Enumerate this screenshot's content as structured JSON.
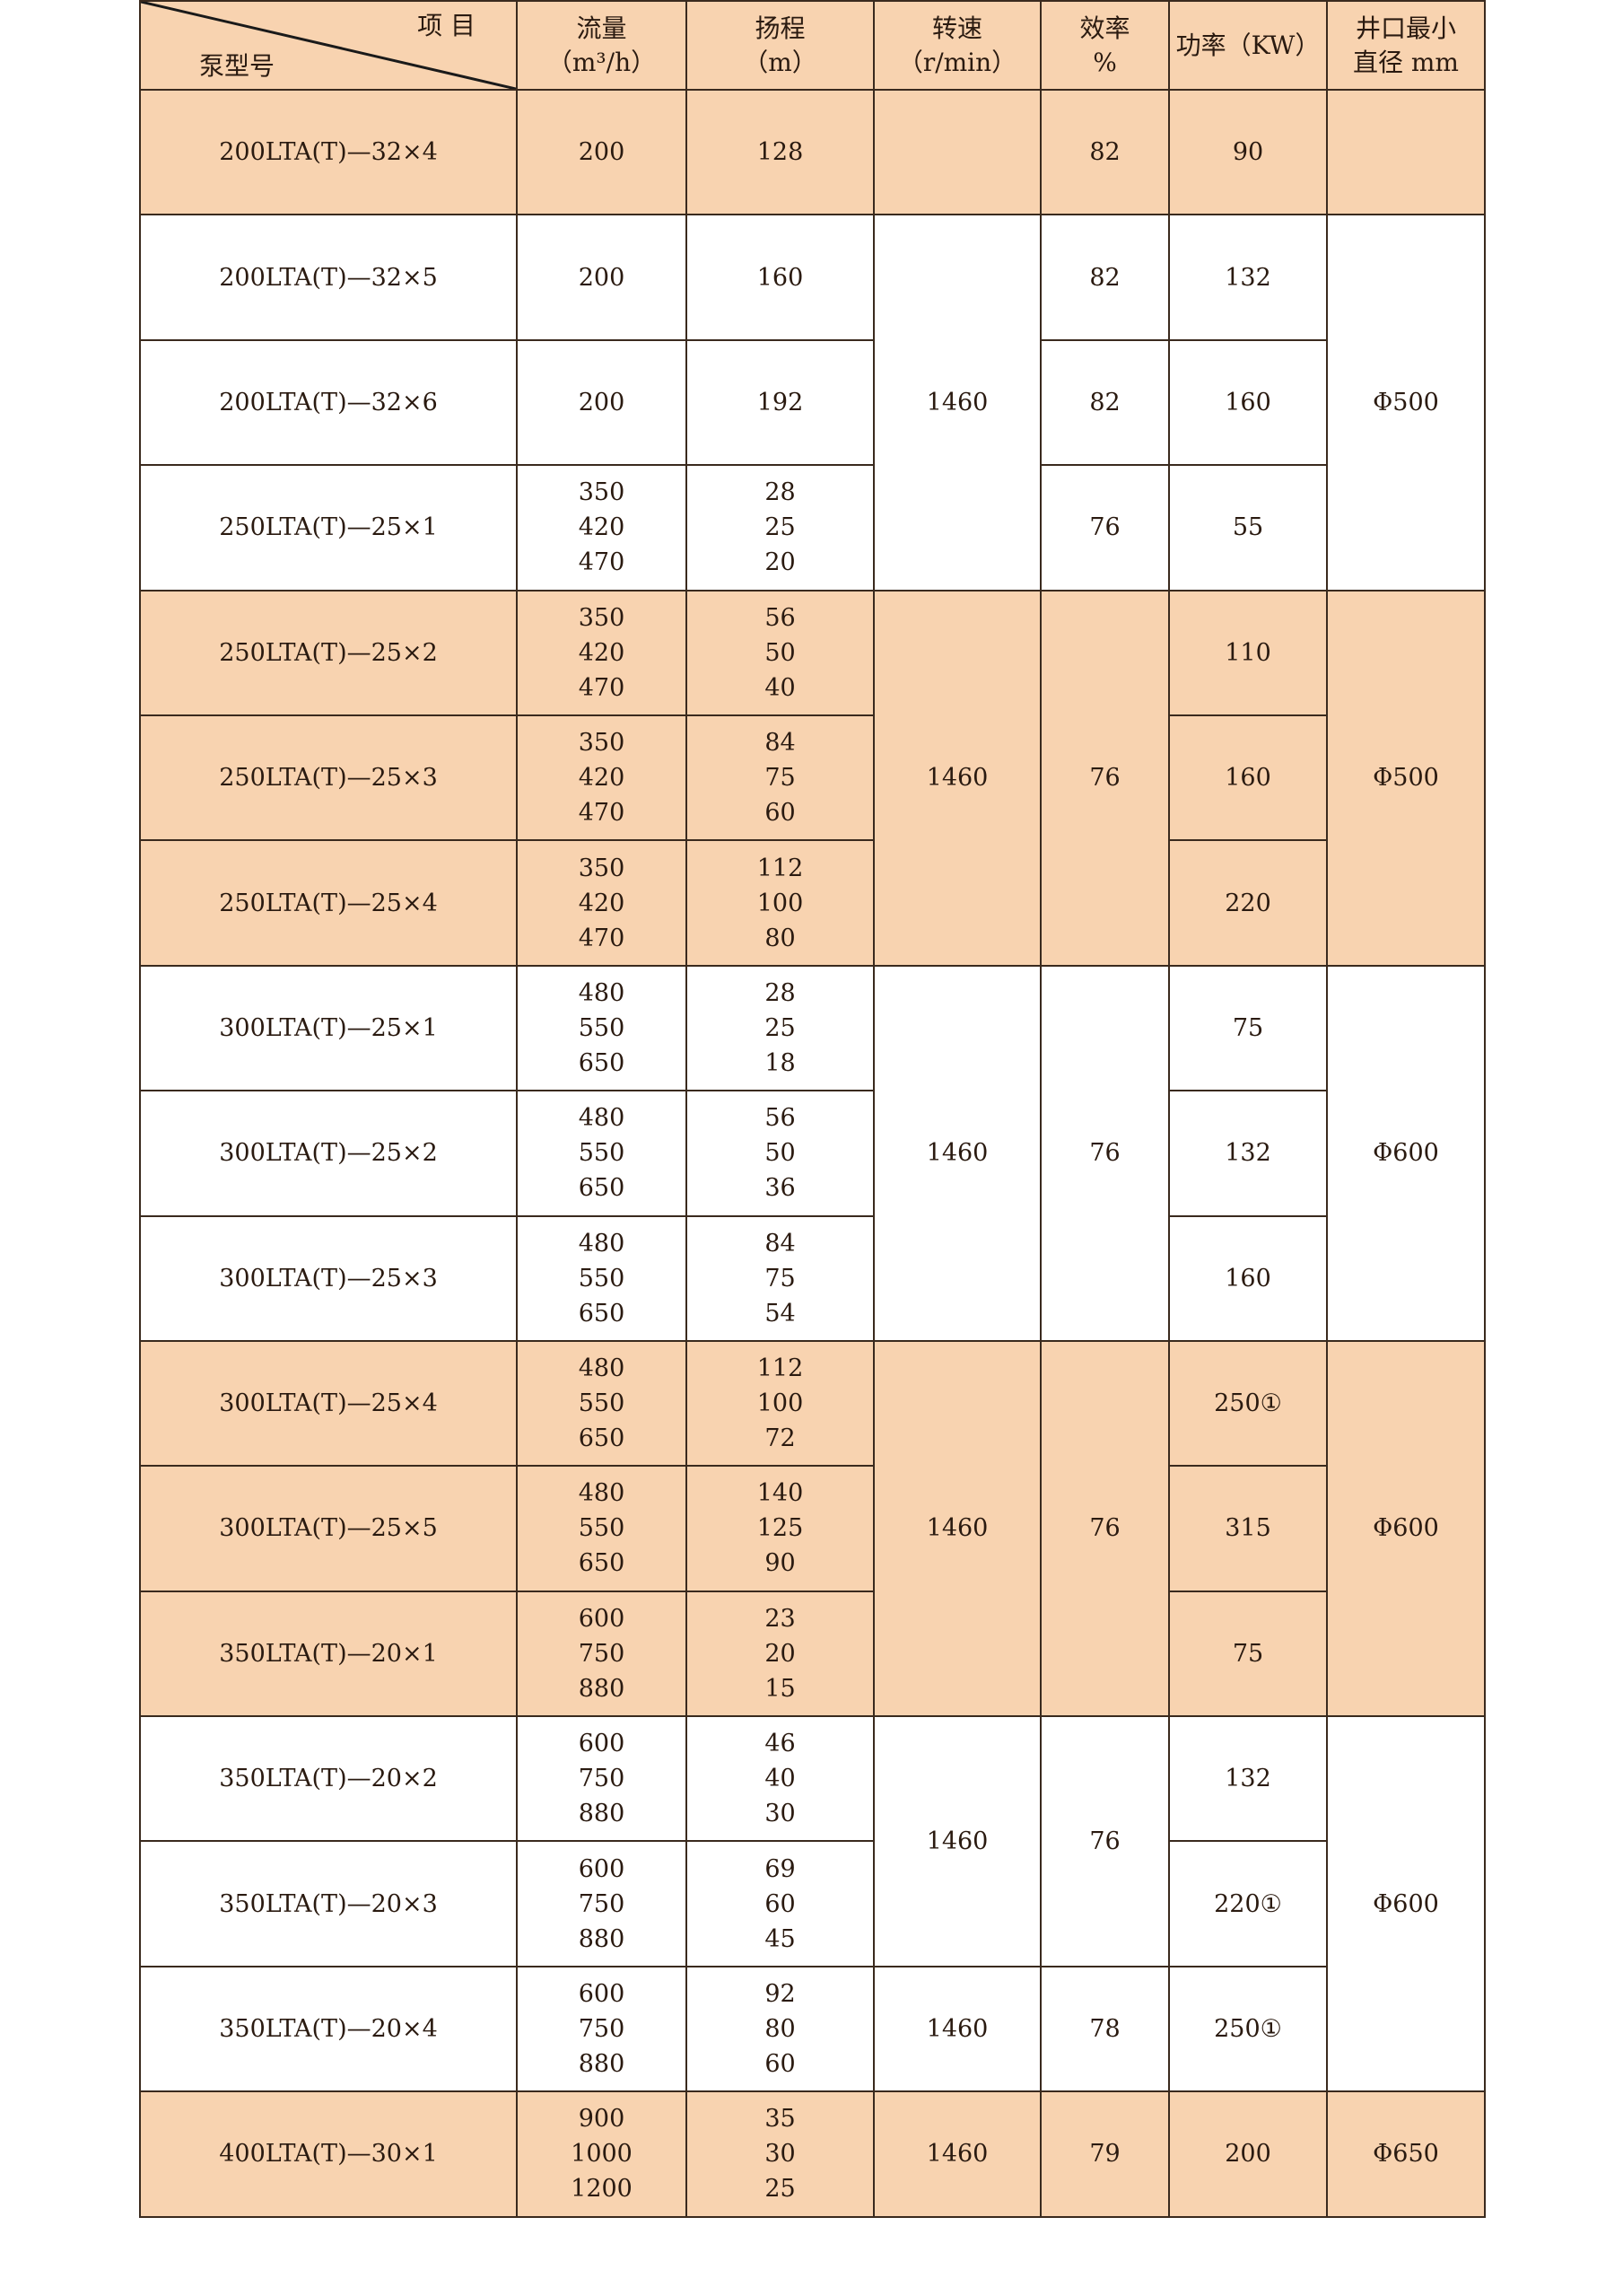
{
  "header": {
    "item_label": "项 目",
    "model_label": "泵型号",
    "flow": [
      "流量",
      "（m³/h）"
    ],
    "head": [
      "扬程",
      "（m）"
    ],
    "speed": [
      "转速",
      "（r/min）"
    ],
    "efficiency": [
      "效率",
      "%"
    ],
    "power": [
      "功率（KW）"
    ],
    "diameter": [
      "井口最小",
      "直径 mm"
    ]
  },
  "colors": {
    "shaded": "#f8d3b0",
    "plain": "#ffffff",
    "border": "#3a2a1e"
  },
  "rows": [
    {
      "model": "200LTA(T)—32×4",
      "flow": [
        "200"
      ],
      "head": [
        "128"
      ],
      "power": "90",
      "shaded": true
    },
    {
      "model": "200LTA(T)—32×5",
      "flow": [
        "200"
      ],
      "head": [
        "160"
      ],
      "power": "132",
      "shaded": false
    },
    {
      "model": "200LTA(T)—32×6",
      "flow": [
        "200"
      ],
      "head": [
        "192"
      ],
      "power": "160",
      "shaded": false
    },
    {
      "model": "250LTA(T)—25×1",
      "flow": [
        "350",
        "420",
        "470"
      ],
      "head": [
        "28",
        "25",
        "20"
      ],
      "power": "55",
      "shaded": false
    },
    {
      "model": "250LTA(T)—25×2",
      "flow": [
        "350",
        "420",
        "470"
      ],
      "head": [
        "56",
        "50",
        "40"
      ],
      "power": "110",
      "shaded": true
    },
    {
      "model": "250LTA(T)—25×3",
      "flow": [
        "350",
        "420",
        "470"
      ],
      "head": [
        "84",
        "75",
        "60"
      ],
      "power": "160",
      "shaded": true
    },
    {
      "model": "250LTA(T)—25×4",
      "flow": [
        "350",
        "420",
        "470"
      ],
      "head": [
        "112",
        "100",
        "80"
      ],
      "power": "220",
      "shaded": true
    },
    {
      "model": "300LTA(T)—25×1",
      "flow": [
        "480",
        "550",
        "650"
      ],
      "head": [
        "28",
        "25",
        "18"
      ],
      "power": "75",
      "shaded": false
    },
    {
      "model": "300LTA(T)—25×2",
      "flow": [
        "480",
        "550",
        "650"
      ],
      "head": [
        "56",
        "50",
        "36"
      ],
      "power": "132",
      "shaded": false
    },
    {
      "model": "300LTA(T)—25×3",
      "flow": [
        "480",
        "550",
        "650"
      ],
      "head": [
        "84",
        "75",
        "54"
      ],
      "power": "160",
      "shaded": false
    },
    {
      "model": "300LTA(T)—25×4",
      "flow": [
        "480",
        "550",
        "650"
      ],
      "head": [
        "112",
        "100",
        "72"
      ],
      "power": "250①",
      "shaded": true
    },
    {
      "model": "300LTA(T)—25×5",
      "flow": [
        "480",
        "550",
        "650"
      ],
      "head": [
        "140",
        "125",
        "90"
      ],
      "power": "315",
      "shaded": true
    },
    {
      "model": "350LTA(T)—20×1",
      "flow": [
        "600",
        "750",
        "880"
      ],
      "head": [
        "23",
        "20",
        "15"
      ],
      "power": "75",
      "shaded": true
    },
    {
      "model": "350LTA(T)—20×2",
      "flow": [
        "600",
        "750",
        "880"
      ],
      "head": [
        "46",
        "40",
        "30"
      ],
      "power": "132",
      "shaded": false
    },
    {
      "model": "350LTA(T)—20×3",
      "flow": [
        "600",
        "750",
        "880"
      ],
      "head": [
        "69",
        "60",
        "45"
      ],
      "power": "220①",
      "shaded": false
    },
    {
      "model": "350LTA(T)—20×4",
      "flow": [
        "600",
        "750",
        "880"
      ],
      "head": [
        "92",
        "80",
        "60"
      ],
      "power": "250①",
      "shaded": false
    },
    {
      "model": "400LTA(T)—30×1",
      "flow": [
        "900",
        "1000",
        "1200"
      ],
      "head": [
        "35",
        "30",
        "25"
      ],
      "power": "200",
      "shaded": true
    }
  ],
  "speed_groups": [
    {
      "value": "",
      "span": 1
    },
    {
      "value": "1460",
      "span": 3
    },
    {
      "value": "1460",
      "span": 3
    },
    {
      "value": "1460",
      "span": 3
    },
    {
      "value": "1460",
      "span": 3
    },
    {
      "value": "1460",
      "span": 2
    },
    {
      "value": "1460",
      "span": 1
    },
    {
      "value": "1460",
      "span": 1
    }
  ],
  "efficiency_groups": [
    {
      "value": "82",
      "span": 1
    },
    {
      "value": "82",
      "span": 1
    },
    {
      "value": "82",
      "span": 1
    },
    {
      "value": "76",
      "span": 1
    },
    {
      "value": "76",
      "span": 3
    },
    {
      "value": "76",
      "span": 3
    },
    {
      "value": "76",
      "span": 3
    },
    {
      "value": "76",
      "span": 2
    },
    {
      "value": "78",
      "span": 1
    },
    {
      "value": "79",
      "span": 1
    }
  ],
  "diameter_groups": [
    {
      "value": "",
      "span": 1
    },
    {
      "value": "Φ500",
      "span": 3
    },
    {
      "value": "Φ500",
      "span": 3
    },
    {
      "value": "Φ600",
      "span": 3
    },
    {
      "value": "Φ600",
      "span": 3
    },
    {
      "value": "Φ600",
      "span": 3
    },
    {
      "value": "Φ650",
      "span": 1
    }
  ]
}
